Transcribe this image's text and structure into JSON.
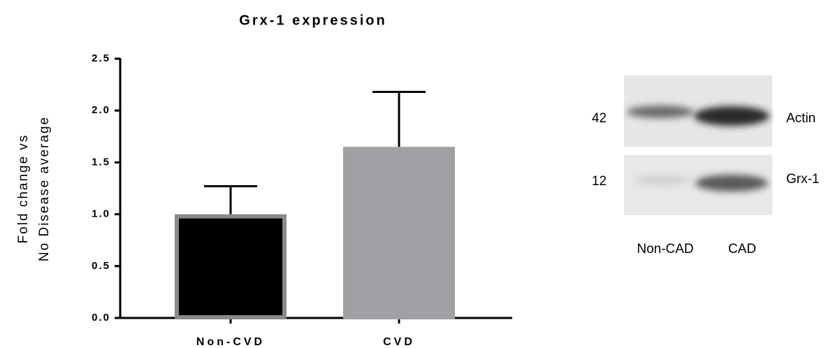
{
  "chart_data": {
    "type": "bar",
    "title": "Grx-1 expression",
    "ylabel": [
      "Fold change vs",
      "No Disease average"
    ],
    "categories": [
      "Non-CVD",
      "CVD"
    ],
    "values": [
      1.0,
      1.65
    ],
    "errors": [
      0.27,
      0.53
    ],
    "colors": [
      "#000000",
      "#a0a0a4"
    ],
    "ylim": [
      0,
      2.5
    ],
    "yticks": [
      {
        "value": 0,
        "label": "0.0"
      },
      0.5,
      {
        "value": 1,
        "label": "1.0"
      },
      1.5,
      {
        "value": 2,
        "label": "2.0"
      },
      2.5
    ],
    "grid": false
  },
  "blot": {
    "markers": [
      "42",
      "12"
    ],
    "proteins": [
      "Actin",
      "Grx-1"
    ],
    "lanes": [
      "Non-CAD",
      "CAD"
    ]
  }
}
